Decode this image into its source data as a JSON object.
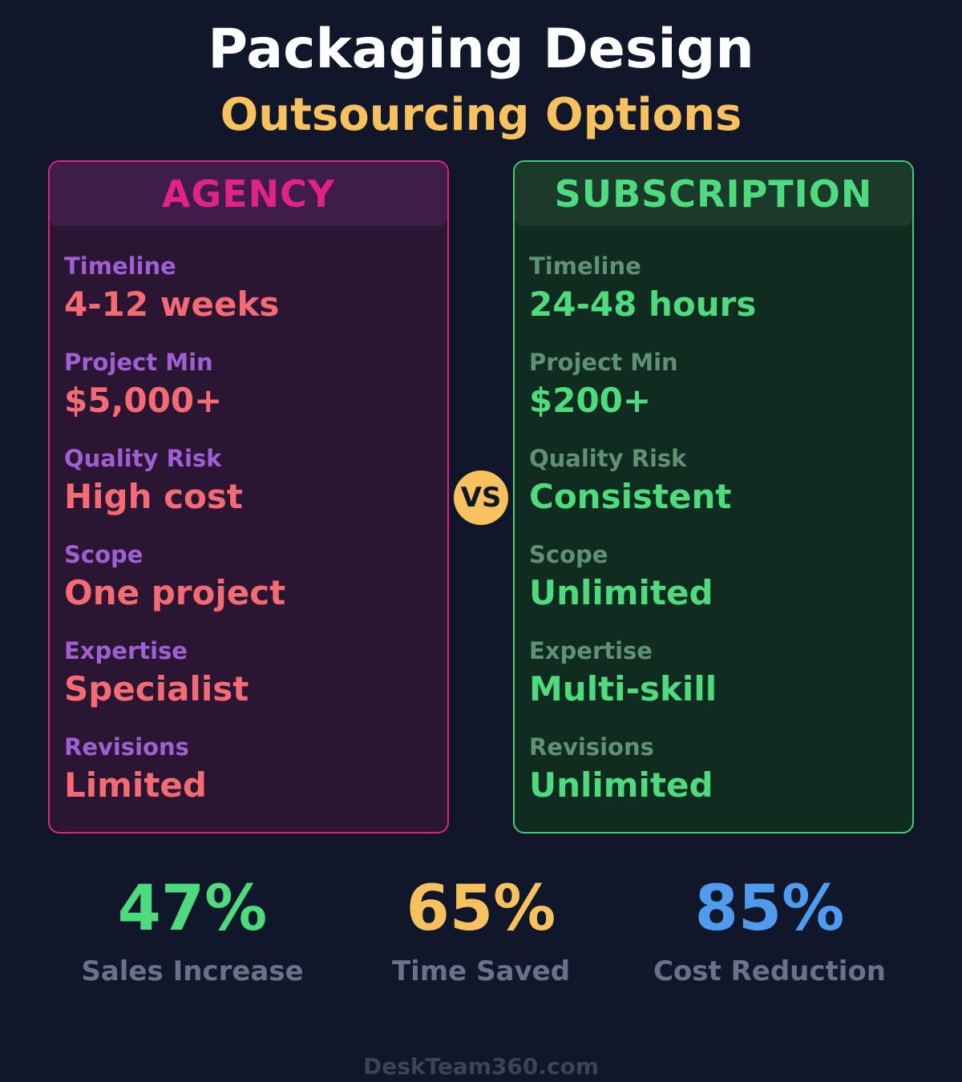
{
  "header": {
    "title": "Packaging Design",
    "subtitle": "Outsourcing Options"
  },
  "vs_badge": "VS",
  "agency": {
    "title": "AGENCY",
    "rows": [
      {
        "label": "Timeline",
        "value": "4-12 weeks"
      },
      {
        "label": "Project Min",
        "value": "$5,000+"
      },
      {
        "label": "Quality Risk",
        "value": "High cost"
      },
      {
        "label": "Scope",
        "value": "One project"
      },
      {
        "label": "Expertise",
        "value": "Specialist"
      },
      {
        "label": "Revisions",
        "value": "Limited"
      }
    ]
  },
  "subscription": {
    "title": "SUBSCRIPTION",
    "rows": [
      {
        "label": "Timeline",
        "value": "24-48 hours"
      },
      {
        "label": "Project Min",
        "value": "$200+"
      },
      {
        "label": "Quality Risk",
        "value": "Consistent"
      },
      {
        "label": "Scope",
        "value": "Unlimited"
      },
      {
        "label": "Expertise",
        "value": "Multi-skill"
      },
      {
        "label": "Revisions",
        "value": "Unlimited"
      }
    ]
  },
  "stats": [
    {
      "value": "47%",
      "label": "Sales Increase",
      "color": "#4ddb7e"
    },
    {
      "value": "65%",
      "label": "Time Saved",
      "color": "#f7c15e"
    },
    {
      "value": "85%",
      "label": "Cost Reduction",
      "color": "#4f9bf0"
    }
  ],
  "colors": {
    "background": "#10172a",
    "agency_accent": "#e0247d",
    "subscription_accent": "#3ecf72",
    "highlight": "#f7c15e"
  },
  "footer": "DeskTeam360.com"
}
